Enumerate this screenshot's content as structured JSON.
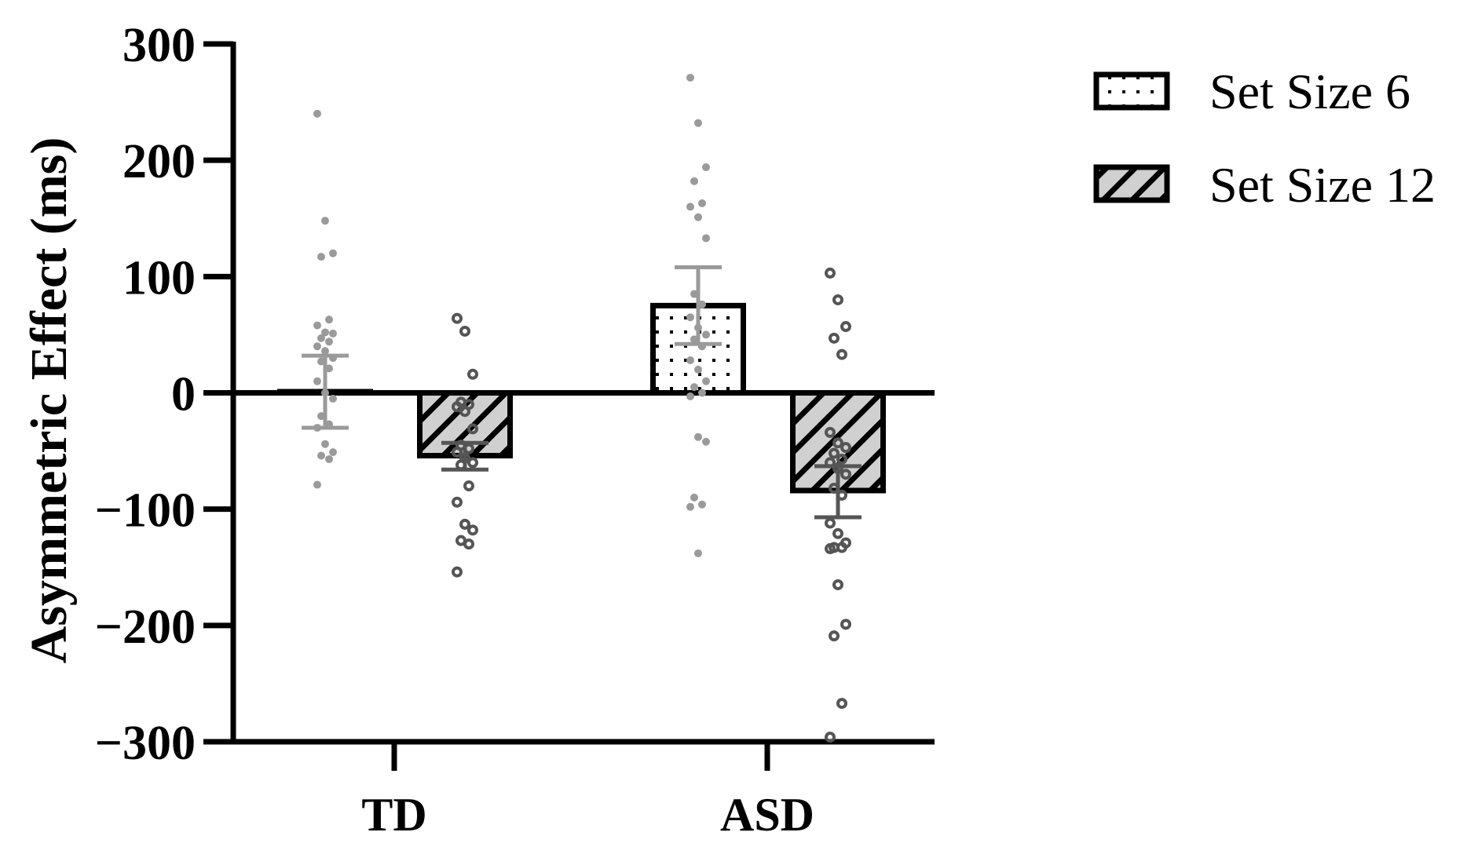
{
  "chart_data": {
    "type": "bar",
    "ylabel": "Asymmetric Effect (ms)",
    "xlabel": "",
    "ylim": [
      -300,
      300
    ],
    "yticks": [
      300,
      200,
      100,
      0,
      -100,
      -200,
      -300
    ],
    "ytick_labels": [
      "300",
      "200",
      "100",
      "0",
      "−100",
      "−200",
      "−300"
    ],
    "categories": [
      "TD",
      "ASD"
    ],
    "legend_position": "top-right",
    "colors": {
      "axis": "#000000",
      "setsize6_points": "#9a9a9a",
      "setsize12_points": "#555555",
      "setsize6_error": "#9a9a9a",
      "setsize12_error": "#555555"
    },
    "series": [
      {
        "name": "Set Size 6",
        "pattern": "dots",
        "values": [
          1,
          75
        ],
        "error": [
          [
            -30,
            32
          ],
          [
            42,
            108
          ]
        ],
        "points": [
          [
            240,
            148,
            120,
            117,
            63,
            58,
            52,
            51,
            47,
            44,
            40,
            36,
            30,
            27,
            21,
            10,
            0,
            -5,
            -20,
            -27,
            -30,
            -44,
            -51,
            -54,
            -57,
            -79
          ],
          [
            271,
            232,
            194,
            182,
            163,
            160,
            151,
            133,
            85,
            76,
            65,
            56,
            50,
            46,
            40,
            28,
            20,
            10,
            5,
            0,
            -3,
            -38,
            -42,
            -90,
            -96,
            -98,
            -138
          ]
        ]
      },
      {
        "name": "Set Size 12",
        "pattern": "hatch",
        "values": [
          -54,
          -84
        ],
        "error": [
          [
            -66,
            -43
          ],
          [
            -107,
            -63
          ]
        ],
        "points": [
          [
            64,
            53,
            16,
            -8,
            -10,
            -12,
            -16,
            -31,
            -45,
            -48,
            -51,
            -56,
            -60,
            -62,
            -80,
            -94,
            -113,
            -118,
            -127,
            -130,
            -154
          ],
          [
            103,
            80,
            57,
            47,
            33,
            -34,
            -43,
            -47,
            -52,
            -57,
            -60,
            -65,
            -70,
            -82,
            -88,
            -112,
            -121,
            -129,
            -133,
            -133,
            -134,
            -165,
            -199,
            -209,
            -267,
            -296
          ]
        ]
      }
    ]
  }
}
